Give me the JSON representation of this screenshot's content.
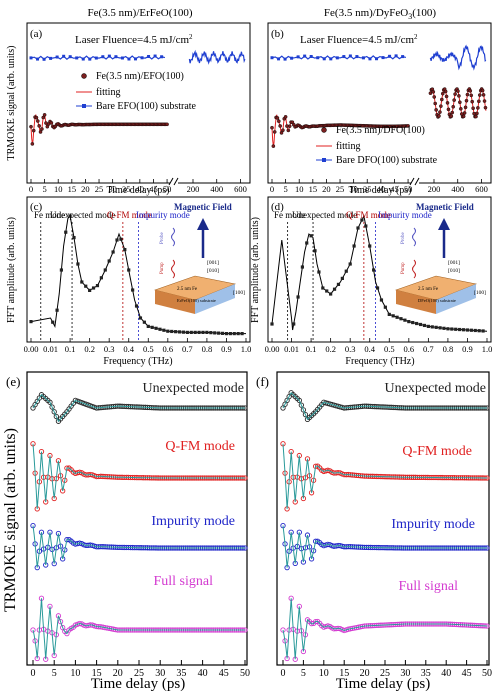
{
  "panels": {
    "a": {
      "title": "Fe(3.5 nm)/ErFeO(100)",
      "label": "(a)",
      "annotation": "Laser Fluence=4.5 mJ/cm",
      "annotation_sup": "2",
      "ylabel": "TRMOKE signal (arb. units)",
      "xlabel": "Time delay (ps)",
      "xticks": [
        "0",
        "5",
        "10",
        "15",
        "20",
        "25",
        "30",
        "35",
        "40",
        "45",
        "50",
        "200",
        "400",
        "600"
      ],
      "legend": [
        "Fe(3.5 nm)/EFO(100)",
        "fitting",
        "Bare EFO(100) substrate"
      ]
    },
    "b": {
      "title": "Fe(3.5 nm)/DyFeO",
      "title_sub": "3",
      "title_tail": "(100)",
      "label": "(b)",
      "annotation": "Laser Fluence=4.5 mJ/cm",
      "annotation_sup": "2",
      "xlabel": "Time delay (ps)",
      "xticks": [
        "0",
        "5",
        "10",
        "15",
        "20",
        "25",
        "30",
        "35",
        "40",
        "45",
        "50",
        "200",
        "400",
        "600"
      ],
      "legend": [
        "Fe(3.5 nm)/DFO(100)",
        "fitting",
        "Bare DFO(100) substrate"
      ]
    },
    "c": {
      "label": "(c)",
      "ylabel": "FFT amplitude (arb. units)",
      "xlabel": "Frequency (THz)",
      "xticks": [
        "0.00",
        "0.01",
        "0.1",
        "0.2",
        "0.3",
        "0.4",
        "0.5",
        "0.6",
        "0.7",
        "0.8",
        "0.9",
        "1.0"
      ],
      "modes": [
        "Fe mode",
        "Unexpected mode",
        "Q-FM mode",
        "Impurity mode"
      ],
      "field_label": "Magnetic Field",
      "inset": {
        "probe": "Probe",
        "pump": "Pump",
        "ax1": "[001]",
        "ax2": "[010]",
        "ax3": "[100]",
        "layer": "2.5 nm Fe",
        "substrate": "ErFeO(100) substrate"
      }
    },
    "d": {
      "label": "(d)",
      "ylabel": "FFT amplitude (arb. units)",
      "xlabel": "Frequency (THz)",
      "xticks": [
        "0.00",
        "0.01",
        "0.1",
        "0.2",
        "0.3",
        "0.4",
        "0.5",
        "0.6",
        "0.7",
        "0.8",
        "0.9",
        "1.0"
      ],
      "modes": [
        "Fe mode",
        "Unexpected mode",
        "Q-FM mode",
        "Impurity mode"
      ],
      "field_label": "Magnetic Field",
      "inset": {
        "probe": "Probe",
        "pump": "Pump",
        "ax1": "[001]",
        "ax2": "[010]",
        "ax3": "[100]",
        "layer": "2.5 nm Fe",
        "substrate": "DFeO(100) substrate"
      }
    },
    "e": {
      "label": "(e)",
      "ylabel": "TRMOKE signal (arb. units)",
      "xlabel": "Time delay (ps)",
      "xticks": [
        "0",
        "5",
        "10",
        "15",
        "20",
        "25",
        "30",
        "35",
        "40",
        "45",
        "50"
      ],
      "traces": [
        "Unexpected mode",
        "Q-FM mode",
        "Impurity mode",
        "Full signal"
      ]
    },
    "f": {
      "label": "(f)",
      "xlabel": "Time delay (ps)",
      "xticks": [
        "0",
        "5",
        "10",
        "15",
        "20",
        "25",
        "30",
        "35",
        "40",
        "45",
        "50"
      ],
      "traces": [
        "Unexpected mode",
        "Q-FM mode",
        "Impurity mode",
        "Full signal"
      ]
    }
  },
  "colors": {
    "unexpected": "#2a2a2a",
    "qfm": "#e02020",
    "impurity": "#1e24c8",
    "full": "#d33ad0",
    "fit": "#2a9a9a",
    "substrate": "#1f3fd1",
    "sample_dots": "#7a1f1f",
    "fit_line": "#e02020"
  },
  "chart_data": [
    {
      "panel": "a",
      "type": "line",
      "xlabel": "Time delay (ps)",
      "ylabel": "TRMOKE signal (arb. units)",
      "xlim": [
        0,
        650
      ],
      "x_break": [
        52,
        160
      ],
      "series": [
        {
          "name": "Fe(3.5 nm)/EFO(100)",
          "x": [
            0,
            1,
            2,
            3,
            4,
            5,
            6,
            7,
            8,
            10,
            12,
            15,
            20,
            25,
            30,
            35,
            40,
            45,
            50
          ],
          "values": [
            0.2,
            -1.0,
            0.9,
            -0.9,
            0.6,
            -0.8,
            -0.3,
            -0.1,
            0.1,
            0.0,
            0.02,
            -0.05,
            -0.05,
            -0.08,
            -0.08,
            -0.08,
            -0.08,
            -0.08,
            -0.08
          ]
        },
        {
          "name": "fitting",
          "x": [
            0,
            1,
            2,
            3,
            4,
            5,
            6,
            7,
            8,
            10,
            12,
            15,
            20,
            25,
            30,
            35,
            40,
            45,
            50
          ],
          "values": [
            0.2,
            -1.0,
            0.9,
            -0.9,
            0.6,
            -0.8,
            -0.3,
            -0.1,
            0.1,
            0.0,
            0.02,
            -0.05,
            -0.05,
            -0.08,
            -0.08,
            -0.08,
            -0.08,
            -0.08,
            -0.08
          ]
        },
        {
          "name": "Bare EFO(100) substrate",
          "x": [
            0,
            10,
            20,
            30,
            40,
            50,
            200,
            300,
            400,
            500,
            600
          ],
          "values": [
            0.85,
            0.87,
            0.88,
            0.9,
            0.9,
            0.92,
            0.95,
            0.97,
            0.98,
            0.95,
            0.9
          ]
        }
      ]
    },
    {
      "panel": "b",
      "type": "line",
      "xlabel": "Time delay (ps)",
      "xlim": [
        0,
        650
      ],
      "x_break": [
        52,
        160
      ],
      "series": [
        {
          "name": "Fe(3.5 nm)/DFO(100)",
          "x": [
            0,
            1,
            2,
            3,
            4,
            5,
            6,
            8,
            10,
            15,
            20,
            25,
            30,
            35,
            40,
            45,
            50,
            200,
            300,
            400,
            500,
            600
          ],
          "values": [
            0.3,
            -0.9,
            1.0,
            -0.9,
            0.7,
            -0.5,
            0.1,
            -0.1,
            0.2,
            0.15,
            0.05,
            0.0,
            0.05,
            0.1,
            0.15,
            0.15,
            0.1,
            0.3,
            0.2,
            0.1,
            0.2,
            0.1
          ]
        },
        {
          "name": "fitting",
          "x": [
            0,
            1,
            2,
            3,
            4,
            5,
            6,
            8,
            10,
            15,
            20,
            25,
            30,
            35,
            40,
            45,
            50
          ],
          "values": [
            0.3,
            -0.9,
            1.0,
            -0.9,
            0.7,
            -0.5,
            0.1,
            -0.1,
            0.2,
            0.15,
            0.05,
            0.0,
            0.05,
            0.1,
            0.15,
            0.15,
            0.1
          ]
        },
        {
          "name": "Bare DFO(100) substrate",
          "x": [
            0,
            10,
            20,
            30,
            40,
            50,
            200,
            300,
            400,
            500,
            600
          ],
          "values": [
            0.88,
            0.9,
            0.92,
            0.92,
            0.93,
            0.95,
            0.96,
            0.97,
            0.98,
            0.99,
            1.0
          ]
        }
      ]
    },
    {
      "panel": "c",
      "type": "line",
      "xlabel": "Frequency (THz)",
      "ylabel": "FFT amplitude (arb. units)",
      "x": [
        0.0,
        0.01,
        0.03,
        0.05,
        0.07,
        0.09,
        0.1,
        0.12,
        0.14,
        0.16,
        0.2,
        0.24,
        0.28,
        0.32,
        0.35,
        0.38,
        0.4,
        0.43,
        0.46,
        0.5,
        0.6,
        0.7,
        0.8,
        0.9,
        1.0
      ],
      "values": [
        0.12,
        0.15,
        0.08,
        0.35,
        0.75,
        0.98,
        1.0,
        0.82,
        0.6,
        0.45,
        0.38,
        0.42,
        0.55,
        0.7,
        0.85,
        0.72,
        0.55,
        0.3,
        0.15,
        0.08,
        0.04,
        0.03,
        0.03,
        0.02,
        0.02
      ]
    },
    {
      "panel": "d",
      "type": "line",
      "xlabel": "Frequency (THz)",
      "ylabel": "FFT amplitude (arb. units)",
      "x": [
        0.0,
        0.005,
        0.01,
        0.015,
        0.03,
        0.05,
        0.07,
        0.09,
        0.11,
        0.13,
        0.16,
        0.2,
        0.25,
        0.3,
        0.34,
        0.37,
        0.4,
        0.43,
        0.46,
        0.5,
        0.6,
        0.7,
        0.8,
        0.9,
        1.0
      ],
      "values": [
        0.1,
        0.8,
        0.15,
        0.05,
        0.2,
        0.45,
        0.7,
        0.85,
        0.82,
        0.6,
        0.4,
        0.35,
        0.45,
        0.6,
        0.9,
        1.0,
        0.75,
        0.45,
        0.3,
        0.18,
        0.12,
        0.08,
        0.06,
        0.05,
        0.04
      ]
    },
    {
      "panel": "e",
      "type": "line",
      "xlabel": "Time delay (ps)",
      "ylabel": "TRMOKE signal (arb. units)",
      "xlim": [
        0,
        50
      ],
      "series": [
        {
          "name": "Unexpected mode",
          "x": [
            0,
            2,
            4,
            6,
            8,
            10,
            15,
            20,
            30,
            40,
            50
          ],
          "values": [
            0.0,
            0.35,
            0.15,
            -0.35,
            -0.1,
            0.2,
            0.0,
            0.05,
            0.0,
            0.0,
            0.0
          ]
        },
        {
          "name": "Q-FM mode",
          "x": [
            0,
            1,
            2,
            3,
            4,
            5,
            6,
            7,
            8,
            10,
            15,
            20,
            30,
            50
          ],
          "values": [
            0.9,
            -0.9,
            0.8,
            -0.7,
            0.6,
            -0.5,
            0.4,
            -0.3,
            0.25,
            0.15,
            0.05,
            0.02,
            0.0,
            0.0
          ]
        },
        {
          "name": "Impurity mode",
          "x": [
            0,
            1,
            2,
            3,
            4,
            5,
            6,
            7,
            8,
            10,
            15,
            20,
            30,
            50
          ],
          "values": [
            0.7,
            -0.7,
            0.6,
            -0.6,
            0.5,
            -0.45,
            0.4,
            -0.3,
            0.25,
            0.15,
            0.05,
            0.02,
            0.0,
            0.0
          ]
        },
        {
          "name": "Full signal",
          "x": [
            0,
            1,
            2,
            3,
            4,
            5,
            6,
            8,
            10,
            15,
            20,
            30,
            40,
            50
          ],
          "values": [
            0.0,
            -0.8,
            0.9,
            -0.8,
            0.6,
            -0.6,
            0.3,
            -0.1,
            0.15,
            0.1,
            0.0,
            0.0,
            0.0,
            0.0
          ]
        }
      ]
    },
    {
      "panel": "f",
      "type": "line",
      "xlabel": "Time delay (ps)",
      "xlim": [
        0,
        50
      ],
      "series": [
        {
          "name": "Unexpected mode",
          "x": [
            0,
            2,
            4,
            6,
            8,
            10,
            15,
            20,
            30,
            40,
            50
          ],
          "values": [
            0.0,
            0.4,
            0.2,
            -0.3,
            -0.1,
            0.15,
            0.0,
            0.05,
            0.0,
            0.0,
            0.0
          ]
        },
        {
          "name": "Q-FM mode",
          "x": [
            0,
            1,
            2,
            3,
            4,
            5,
            6,
            7,
            8,
            10,
            15,
            20,
            30,
            50
          ],
          "values": [
            0.9,
            -0.9,
            0.8,
            -0.7,
            0.6,
            -0.5,
            0.45,
            -0.35,
            0.3,
            0.2,
            0.1,
            0.05,
            0.02,
            0.0
          ]
        },
        {
          "name": "Impurity mode",
          "x": [
            0,
            1,
            2,
            3,
            4,
            5,
            6,
            7,
            8,
            10,
            15,
            20,
            30,
            50
          ],
          "values": [
            0.7,
            -0.7,
            0.6,
            -0.55,
            0.5,
            -0.4,
            0.35,
            -0.3,
            0.2,
            0.1,
            0.05,
            0.02,
            0.0,
            0.0
          ]
        },
        {
          "name": "Full signal",
          "x": [
            0,
            1,
            2,
            3,
            4,
            5,
            6,
            8,
            10,
            15,
            20,
            30,
            40,
            50
          ],
          "values": [
            0.0,
            -0.8,
            0.9,
            -0.8,
            0.6,
            -0.5,
            0.2,
            0.2,
            0.1,
            0.0,
            0.1,
            0.15,
            0.15,
            0.1
          ]
        }
      ]
    }
  ]
}
